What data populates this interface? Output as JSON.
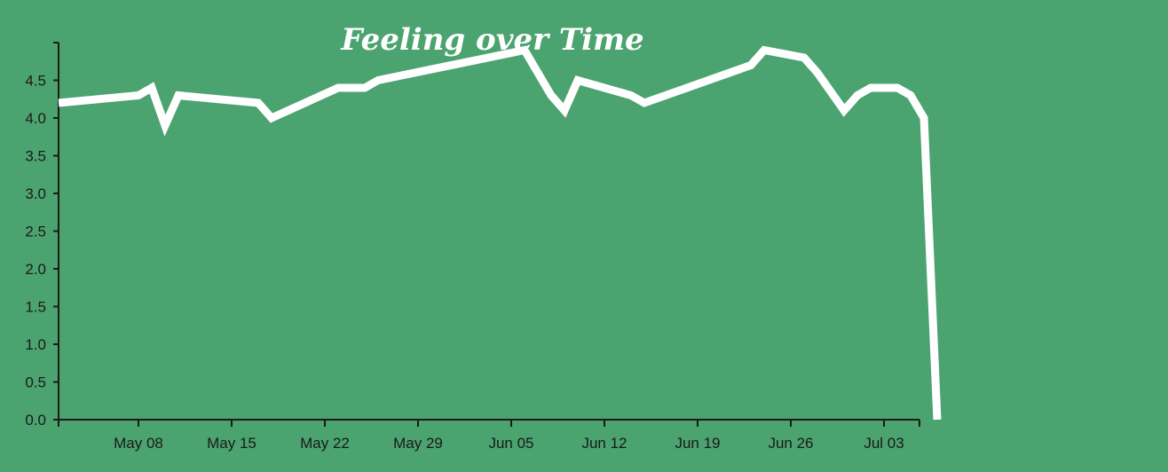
{
  "chart_data": {
    "type": "line",
    "title": "Feeling over Time",
    "xlabel": "",
    "ylabel": "",
    "x_type": "date",
    "xlim": [
      "2022-05-02",
      "2022-07-06"
    ],
    "ylim": [
      0,
      5.0
    ],
    "y_ticks": [
      0.0,
      0.5,
      1.0,
      1.5,
      2.0,
      2.5,
      3.0,
      3.5,
      4.0,
      4.5
    ],
    "y_tick_labels": [
      "0.0",
      "0.5",
      "1.0",
      "1.5",
      "2.0",
      "2.5",
      "3.0",
      "3.5",
      "4.0",
      "4.5"
    ],
    "x_ticks": [
      {
        "date": "2022-05-08",
        "label": "May 08"
      },
      {
        "date": "2022-05-15",
        "label": "May 15"
      },
      {
        "date": "2022-05-22",
        "label": "May 22"
      },
      {
        "date": "2022-05-29",
        "label": "May 29"
      },
      {
        "date": "2022-06-05",
        "label": "Jun 05"
      },
      {
        "date": "2022-06-12",
        "label": "Jun 12"
      },
      {
        "date": "2022-06-19",
        "label": "Jun 19"
      },
      {
        "date": "2022-06-26",
        "label": "Jun 26"
      },
      {
        "date": "2022-07-03",
        "label": "Jul 03"
      }
    ],
    "grid": false,
    "series": [
      {
        "color": "#ffffff",
        "points": [
          {
            "x": "2022-05-02",
            "y": 4.2
          },
          {
            "x": "2022-05-08",
            "y": 4.3
          },
          {
            "x": "2022-05-09",
            "y": 4.4
          },
          {
            "x": "2022-05-10",
            "y": 3.9
          },
          {
            "x": "2022-05-11",
            "y": 4.3
          },
          {
            "x": "2022-05-17",
            "y": 4.2
          },
          {
            "x": "2022-05-18",
            "y": 4.0
          },
          {
            "x": "2022-05-23",
            "y": 4.4
          },
          {
            "x": "2022-05-25",
            "y": 4.4
          },
          {
            "x": "2022-05-26",
            "y": 4.5
          },
          {
            "x": "2022-06-06",
            "y": 4.9
          },
          {
            "x": "2022-06-08",
            "y": 4.3
          },
          {
            "x": "2022-06-09",
            "y": 4.1
          },
          {
            "x": "2022-06-10",
            "y": 4.5
          },
          {
            "x": "2022-06-14",
            "y": 4.3
          },
          {
            "x": "2022-06-15",
            "y": 4.2
          },
          {
            "x": "2022-06-23",
            "y": 4.7
          },
          {
            "x": "2022-06-24",
            "y": 4.9
          },
          {
            "x": "2022-06-27",
            "y": 4.8
          },
          {
            "x": "2022-06-28",
            "y": 4.6
          },
          {
            "x": "2022-06-30",
            "y": 4.1
          },
          {
            "x": "2022-07-01",
            "y": 4.3
          },
          {
            "x": "2022-07-02",
            "y": 4.4
          },
          {
            "x": "2022-07-04",
            "y": 4.4
          },
          {
            "x": "2022-07-05",
            "y": 4.3
          },
          {
            "x": "2022-07-06",
            "y": 4.0
          },
          {
            "x": "2022-07-07",
            "y": 0.0
          }
        ]
      }
    ]
  }
}
